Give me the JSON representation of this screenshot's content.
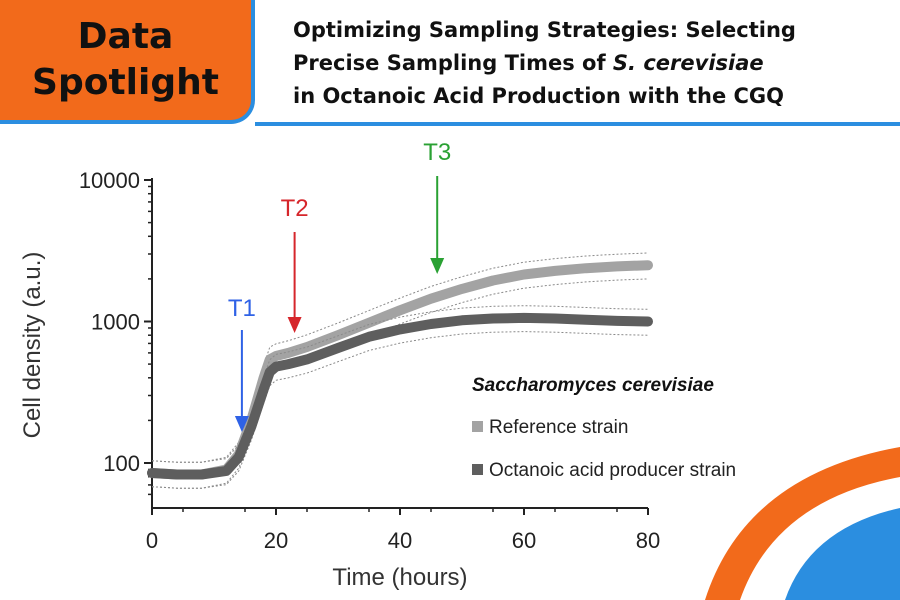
{
  "header": {
    "badge_line1": "Data",
    "badge_line2": "Spotlight",
    "title_line1": "Optimizing Sampling Strategies: Selecting",
    "title_line2_pre": "Precise Sampling Times of ",
    "title_line2_em": "S. cerevisiae",
    "title_line3": "in Octanoic Acid Production with the CGQ",
    "colors": {
      "badge": "#f26a1b",
      "accent_blue": "#2b8ee0"
    }
  },
  "chart_data": {
    "type": "line",
    "title": "",
    "xlabel": "Time (hours)",
    "ylabel": "Cell density (a.u.)",
    "xlim": [
      0,
      80
    ],
    "ylim": [
      50,
      10000
    ],
    "yscale": "log",
    "xticks": [
      0,
      20,
      40,
      60,
      80
    ],
    "xtick_labels": [
      "0",
      "20",
      "40",
      "60",
      "80"
    ],
    "yticks": [
      100,
      1000,
      10000
    ],
    "ytick_labels": [
      "100",
      "1000",
      "10000"
    ],
    "legend_title": "Saccharomyces cerevisiae",
    "legend_position": "right",
    "series": [
      {
        "name": "Reference strain",
        "color": "#a3a3a3",
        "x": [
          0,
          4,
          8,
          12,
          14,
          16,
          18,
          19,
          20,
          22,
          25,
          30,
          35,
          40,
          45,
          50,
          55,
          60,
          65,
          70,
          75,
          80
        ],
        "y": [
          85,
          83,
          83,
          90,
          115,
          200,
          400,
          540,
          570,
          600,
          660,
          800,
          980,
          1200,
          1450,
          1700,
          1950,
          2150,
          2280,
          2380,
          2450,
          2500
        ]
      },
      {
        "name": "Octanoic acid producer strain",
        "color": "#5e5e5e",
        "x": [
          0,
          4,
          8,
          12,
          14,
          16,
          18,
          19,
          20,
          22,
          25,
          30,
          35,
          40,
          45,
          50,
          55,
          60,
          65,
          70,
          75,
          80
        ],
        "y": [
          85,
          83,
          83,
          88,
          110,
          180,
          330,
          440,
          480,
          500,
          540,
          650,
          780,
          880,
          960,
          1020,
          1050,
          1060,
          1050,
          1030,
          1010,
          1000
        ]
      }
    ],
    "annotations": [
      {
        "label": "T1",
        "x": 14.5,
        "color": "#2f62e6"
      },
      {
        "label": "T2",
        "x": 23,
        "color": "#d6262b"
      },
      {
        "label": "T3",
        "x": 46,
        "color": "#2aa133"
      }
    ]
  }
}
